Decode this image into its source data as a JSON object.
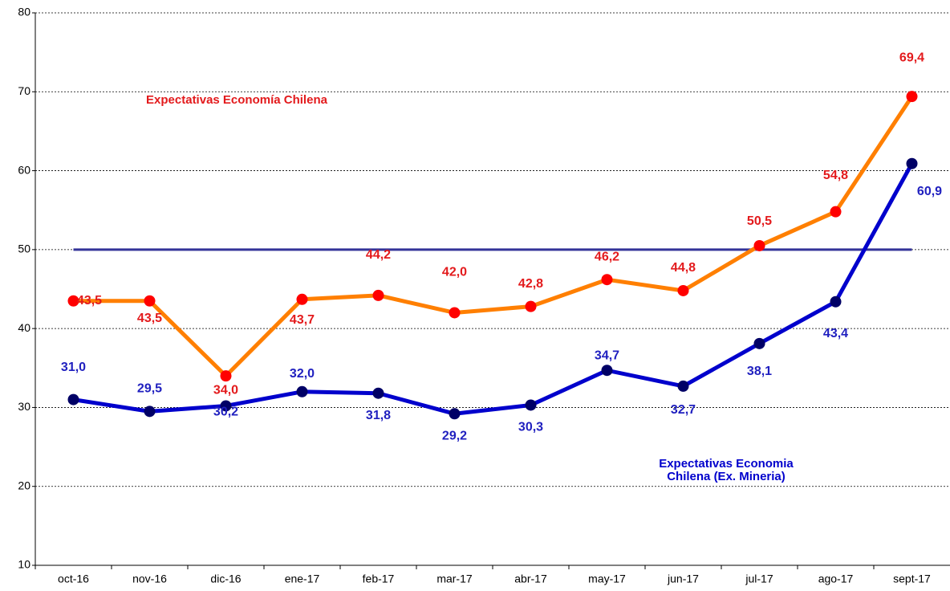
{
  "chart_data": {
    "type": "line",
    "categories": [
      "oct-16",
      "nov-16",
      "dic-16",
      "ene-17",
      "feb-17",
      "mar-17",
      "abr-17",
      "may-17",
      "jun-17",
      "jul-17",
      "ago-17",
      "sept-17"
    ],
    "series": [
      {
        "name": "Expectativas Economía Chilena",
        "color": "#ff7f00",
        "marker_color": "#ff0000",
        "label_color": "#e31a1c",
        "values": [
          43.5,
          43.5,
          34.0,
          43.7,
          44.2,
          42.0,
          42.8,
          46.2,
          44.8,
          50.5,
          54.8,
          69.4
        ],
        "value_labels": [
          "43,5",
          "43,5",
          "34,0",
          "43,7",
          "44,2",
          "42,0",
          "42,8",
          "46,2",
          "44,8",
          "50,5",
          "54,8",
          "69,4"
        ]
      },
      {
        "name": "Expectativas Economia Chilena (Ex. Mineria)",
        "color": "#0000cc",
        "marker_color": "#000066",
        "label_color": "#1f1fbf",
        "values": [
          31.0,
          29.5,
          30.2,
          32.0,
          31.8,
          29.2,
          30.3,
          34.7,
          32.7,
          38.1,
          43.4,
          60.9
        ],
        "value_labels": [
          "31,0",
          "29,5",
          "30,2",
          "32,0",
          "31,8",
          "29,2",
          "30,3",
          "34,7",
          "32,7",
          "38,1",
          "43,4",
          "60,9"
        ]
      }
    ],
    "reference_line": {
      "value": 50,
      "color": "#333399"
    },
    "ylim": [
      10,
      80
    ],
    "yticks": [
      10,
      20,
      30,
      40,
      50,
      60,
      70,
      80
    ],
    "grid": true
  }
}
